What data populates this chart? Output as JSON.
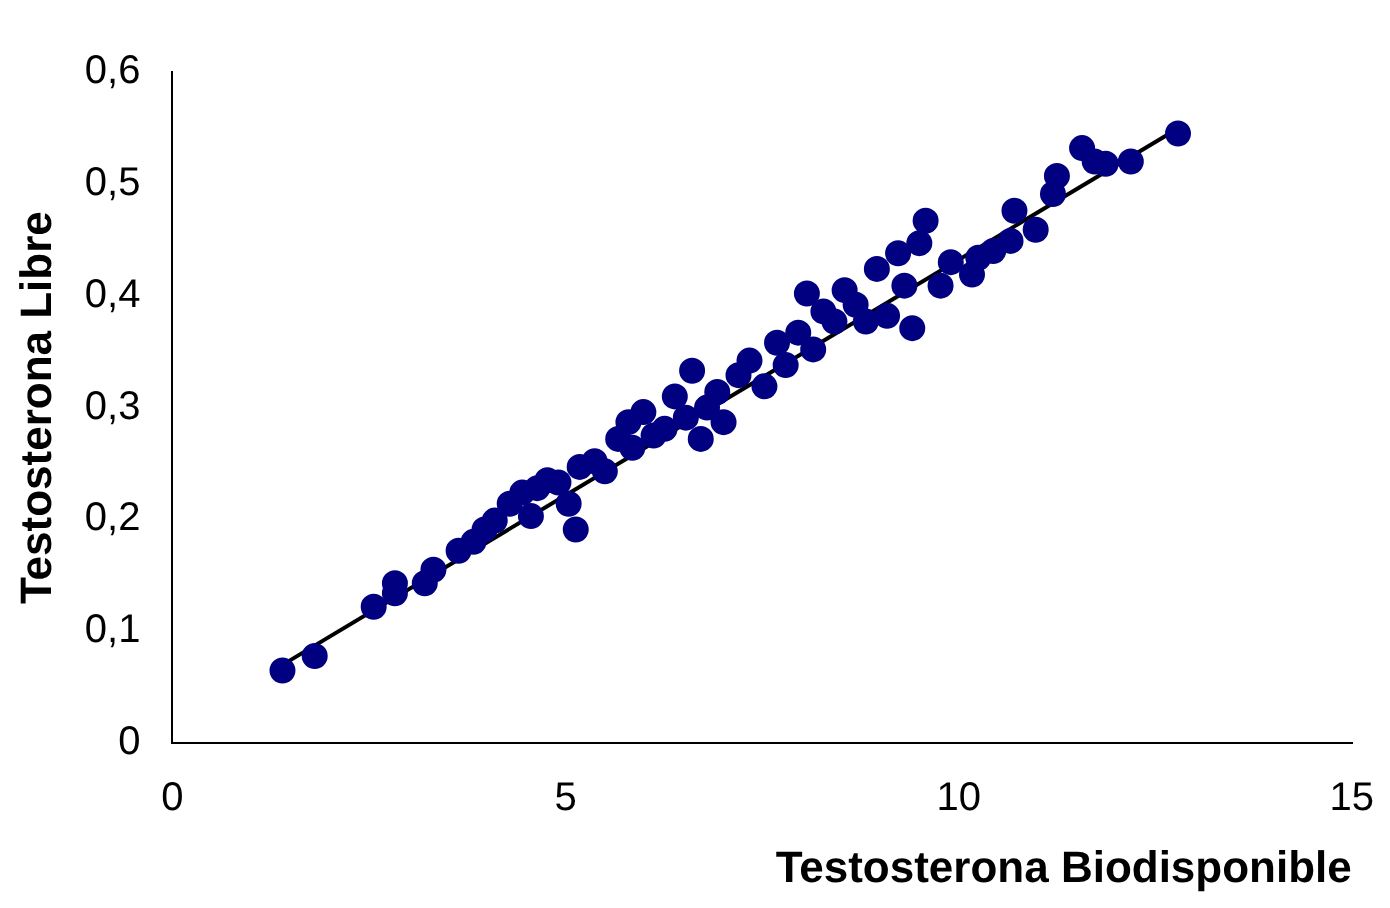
{
  "chart_data": {
    "type": "scatter",
    "xlabel": "Testosterona Biodisponible",
    "ylabel": "Testosterona Libre",
    "xlim": [
      0,
      15
    ],
    "ylim": [
      0,
      0.6
    ],
    "xticks": [
      0,
      5,
      10,
      15
    ],
    "yticks": [
      0,
      {
        "value": 0.1,
        "label": "0,1"
      },
      {
        "value": 0.2,
        "label": "0,2"
      },
      {
        "value": 0.3,
        "label": "0,3"
      },
      {
        "value": 0.4,
        "label": "0,4"
      },
      {
        "value": 0.5,
        "label": "0,5"
      },
      {
        "value": 0.6,
        "label": "0,6"
      }
    ],
    "grid": false,
    "legend": false,
    "marker": "circle",
    "series": [
      {
        "color": "#000080",
        "x": [
          1.4,
          1.81,
          2.56,
          2.83,
          2.83,
          3.21,
          3.32,
          3.64,
          3.83,
          3.97,
          4.1,
          4.29,
          4.45,
          4.64,
          4.56,
          4.77,
          4.91,
          5.13,
          5.04,
          5.18,
          5.37,
          5.5,
          5.67,
          5.8,
          5.85,
          5.99,
          6.12,
          6.26,
          6.39,
          6.53,
          6.61,
          6.72,
          6.8,
          6.93,
          7.01,
          7.2,
          7.34,
          7.53,
          7.69,
          7.8,
          7.96,
          8.07,
          8.15,
          8.28,
          8.42,
          8.55,
          8.69,
          8.82,
          8.96,
          9.09,
          9.23,
          9.31,
          9.41,
          9.5,
          9.58,
          9.77,
          9.9,
          10.17,
          10.25,
          10.44,
          10.66,
          10.71,
          10.98,
          11.2,
          11.25,
          11.57,
          11.73,
          11.87,
          12.19,
          12.79
        ],
        "values": [
          0.065,
          0.078,
          0.122,
          0.134,
          0.143,
          0.143,
          0.155,
          0.172,
          0.18,
          0.191,
          0.199,
          0.214,
          0.224,
          0.228,
          0.203,
          0.235,
          0.233,
          0.191,
          0.214,
          0.247,
          0.252,
          0.243,
          0.272,
          0.287,
          0.264,
          0.296,
          0.275,
          0.281,
          0.31,
          0.291,
          0.333,
          0.272,
          0.3,
          0.314,
          0.287,
          0.329,
          0.342,
          0.319,
          0.358,
          0.338,
          0.367,
          0.402,
          0.352,
          0.386,
          0.377,
          0.405,
          0.392,
          0.377,
          0.424,
          0.382,
          0.438,
          0.409,
          0.371,
          0.447,
          0.467,
          0.409,
          0.43,
          0.419,
          0.434,
          0.44,
          0.449,
          0.476,
          0.459,
          0.491,
          0.507,
          0.532,
          0.52,
          0.518,
          0.52,
          0.545
        ]
      },
      {
        "type": "line",
        "color": "#000000",
        "marker": "none",
        "line_style": "solid",
        "x": [
          1.4,
          12.8
        ],
        "values": [
          0.07,
          0.55
        ]
      }
    ]
  }
}
